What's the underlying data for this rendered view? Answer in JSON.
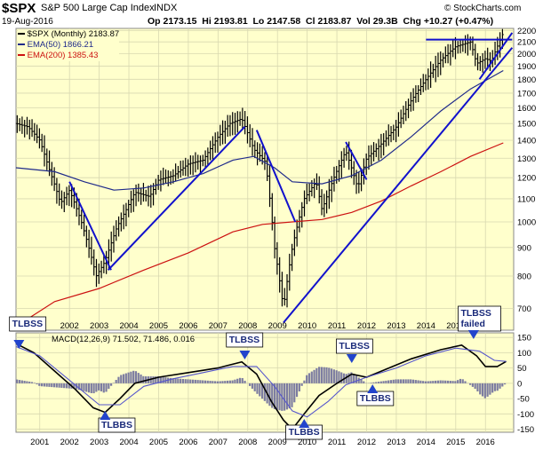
{
  "header": {
    "symbol": "$SPX",
    "name": "S&P 500 Large Cap Index",
    "exchange": "INDX",
    "date": "19-Aug-2016",
    "stats": "Op 2173.15  Hi 2193.81  Lo 2147.58  Cl 2183.87  Vol 29.3B  Chg +10.27 (+0.47%)",
    "brand": "© StockCharts.com",
    "legend_price": "$SPX (Monthly) 2183.87",
    "legend_ema50": "EMA(50) 1866.21",
    "legend_ema200": "EMA(200) 1385.43",
    "macd_label": "MACD(12,26,9) 71.502, 71.486, 0.016"
  },
  "colors": {
    "panel_bg": "#ffffcc",
    "grid": "#d8d8b0",
    "price": "#000000",
    "ema50": "#1f2a8a",
    "ema200": "#cc1111",
    "trendline": "#1111cc",
    "hist": "#666699",
    "signal": "#5555cc",
    "annotation": "#2244cc"
  },
  "chart_data": [
    {
      "type": "line",
      "panel": "price",
      "scale": "log",
      "x_ticks": [
        "2002",
        "2003",
        "2004",
        "2005",
        "2006",
        "2007",
        "2008",
        "2009",
        "2010",
        "2011",
        "2012",
        "2013",
        "2014",
        "2015",
        "2016"
      ],
      "x_tick_years": [
        2002,
        2003,
        2004,
        2005,
        2006,
        2007,
        2008,
        2009,
        2010,
        2011,
        2012,
        2013,
        2014,
        2015,
        2016
      ],
      "y_ticks": [
        700,
        800,
        900,
        1000,
        1100,
        1200,
        1300,
        1400,
        1500,
        1600,
        1700,
        1800,
        1900,
        2000,
        2100,
        2200
      ],
      "ylim": [
        640,
        2220
      ],
      "xlim": [
        2000.2,
        2016.95
      ],
      "series": [
        {
          "name": "$SPX (Monthly)",
          "values": [
            [
              2000.2,
              1500
            ],
            [
              2000.6,
              1480
            ],
            [
              2001.0,
              1400
            ],
            [
              2001.3,
              1250
            ],
            [
              2001.7,
              1080
            ],
            [
              2002.0,
              1140
            ],
            [
              2002.4,
              1000
            ],
            [
              2002.7,
              880
            ],
            [
              2002.9,
              800
            ],
            [
              2003.2,
              850
            ],
            [
              2003.6,
              980
            ],
            [
              2003.9,
              1050
            ],
            [
              2004.2,
              1130
            ],
            [
              2004.7,
              1110
            ],
            [
              2005.0,
              1190
            ],
            [
              2005.5,
              1210
            ],
            [
              2006.0,
              1270
            ],
            [
              2006.5,
              1290
            ],
            [
              2007.0,
              1420
            ],
            [
              2007.4,
              1500
            ],
            [
              2007.8,
              1530
            ],
            [
              2008.2,
              1350
            ],
            [
              2008.6,
              1280
            ],
            [
              2008.9,
              900
            ],
            [
              2009.2,
              700
            ],
            [
              2009.5,
              900
            ],
            [
              2009.9,
              1100
            ],
            [
              2010.3,
              1180
            ],
            [
              2010.5,
              1050
            ],
            [
              2010.9,
              1200
            ],
            [
              2011.3,
              1340
            ],
            [
              2011.7,
              1150
            ],
            [
              2012.0,
              1300
            ],
            [
              2012.5,
              1380
            ],
            [
              2013.0,
              1480
            ],
            [
              2013.5,
              1650
            ],
            [
              2014.0,
              1800
            ],
            [
              2014.5,
              1950
            ],
            [
              2015.0,
              2060
            ],
            [
              2015.5,
              2100
            ],
            [
              2015.7,
              1920
            ],
            [
              2016.0,
              1960
            ],
            [
              2016.2,
              1940
            ],
            [
              2016.6,
              2180
            ]
          ]
        },
        {
          "name": "EMA(50)",
          "values": [
            [
              2000.2,
              1250
            ],
            [
              2001.5,
              1230
            ],
            [
              2002.5,
              1180
            ],
            [
              2003.5,
              1140
            ],
            [
              2004.5,
              1150
            ],
            [
              2005.5,
              1180
            ],
            [
              2006.5,
              1220
            ],
            [
              2007.5,
              1290
            ],
            [
              2008.2,
              1310
            ],
            [
              2008.9,
              1250
            ],
            [
              2009.5,
              1180
            ],
            [
              2010.5,
              1170
            ],
            [
              2011.5,
              1210
            ],
            [
              2012.5,
              1290
            ],
            [
              2013.5,
              1420
            ],
            [
              2014.5,
              1580
            ],
            [
              2015.5,
              1730
            ],
            [
              2016.6,
              1866
            ]
          ]
        },
        {
          "name": "EMA(200)",
          "values": [
            [
              2000.2,
              650
            ],
            [
              2001.5,
              720
            ],
            [
              2003.0,
              760
            ],
            [
              2004.5,
              820
            ],
            [
              2006.0,
              880
            ],
            [
              2007.5,
              960
            ],
            [
              2008.5,
              990
            ],
            [
              2009.5,
              1000
            ],
            [
              2010.5,
              1010
            ],
            [
              2011.5,
              1040
            ],
            [
              2012.5,
              1090
            ],
            [
              2013.5,
              1160
            ],
            [
              2014.5,
              1230
            ],
            [
              2015.5,
              1310
            ],
            [
              2016.6,
              1385
            ]
          ]
        }
      ]
    },
    {
      "type": "line",
      "panel": "macd",
      "x_ticks": [
        "2001",
        "2002",
        "2003",
        "2004",
        "2005",
        "2006",
        "2007",
        "2008",
        "2009",
        "2010",
        "2011",
        "2012",
        "2013",
        "2014",
        "2015",
        "2016"
      ],
      "x_tick_years": [
        2001,
        2002,
        2003,
        2004,
        2005,
        2006,
        2007,
        2008,
        2009,
        2010,
        2011,
        2012,
        2013,
        2014,
        2015,
        2016
      ],
      "y_ticks": [
        -150,
        -100,
        -50,
        0,
        50,
        100,
        150
      ],
      "ylim": [
        -160,
        165
      ],
      "series": [
        {
          "name": "MACD",
          "values": [
            [
              2000.2,
              130
            ],
            [
              2000.8,
              100
            ],
            [
              2001.5,
              40
            ],
            [
              2002.2,
              -20
            ],
            [
              2002.8,
              -80
            ],
            [
              2003.2,
              -95
            ],
            [
              2003.7,
              -50
            ],
            [
              2004.2,
              0
            ],
            [
              2005.0,
              20
            ],
            [
              2006.0,
              35
            ],
            [
              2007.0,
              50
            ],
            [
              2007.8,
              70
            ],
            [
              2008.3,
              30
            ],
            [
              2008.8,
              -60
            ],
            [
              2009.2,
              -120
            ],
            [
              2009.5,
              -150
            ],
            [
              2009.9,
              -100
            ],
            [
              2010.4,
              -40
            ],
            [
              2011.0,
              0
            ],
            [
              2011.5,
              30
            ],
            [
              2012.0,
              20
            ],
            [
              2012.5,
              40
            ],
            [
              2013.5,
              80
            ],
            [
              2014.5,
              110
            ],
            [
              2015.2,
              125
            ],
            [
              2015.7,
              90
            ],
            [
              2016.0,
              55
            ],
            [
              2016.4,
              55
            ],
            [
              2016.7,
              71.5
            ]
          ]
        },
        {
          "name": "Signal",
          "values": [
            [
              2000.2,
              120
            ],
            [
              2001.0,
              90
            ],
            [
              2002.0,
              10
            ],
            [
              2003.0,
              -70
            ],
            [
              2003.7,
              -70
            ],
            [
              2004.5,
              -10
            ],
            [
              2005.5,
              15
            ],
            [
              2006.5,
              35
            ],
            [
              2007.5,
              55
            ],
            [
              2008.3,
              55
            ],
            [
              2008.9,
              -10
            ],
            [
              2009.5,
              -90
            ],
            [
              2010.0,
              -110
            ],
            [
              2010.7,
              -60
            ],
            [
              2011.3,
              -5
            ],
            [
              2012.0,
              20
            ],
            [
              2013.0,
              50
            ],
            [
              2014.0,
              90
            ],
            [
              2015.0,
              115
            ],
            [
              2015.8,
              105
            ],
            [
              2016.3,
              75
            ],
            [
              2016.7,
              71.5
            ]
          ]
        }
      ]
    }
  ],
  "annotations": {
    "labels": [
      "TLBSS",
      "TLBBS",
      "TLBSS",
      "TLBBS",
      "TLBSS",
      "TLBBS",
      "TLBSS failed"
    ]
  }
}
